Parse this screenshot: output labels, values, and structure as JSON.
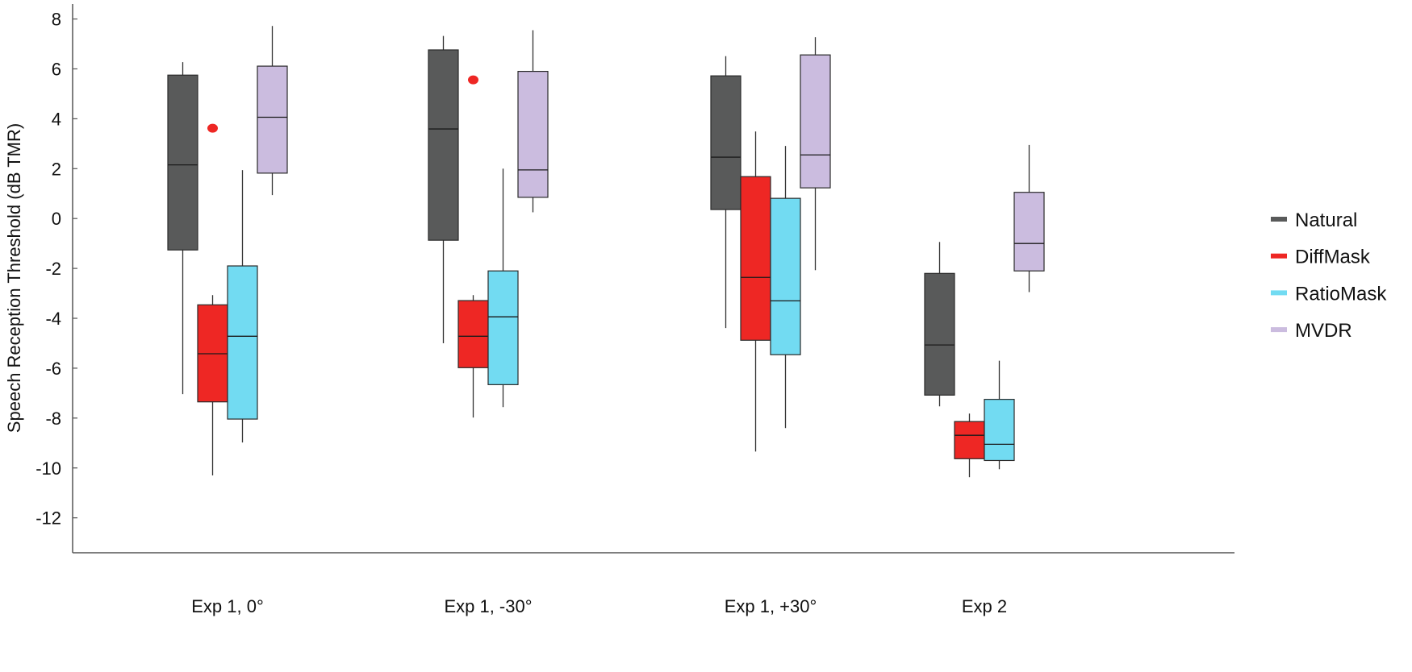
{
  "chart_data": {
    "type": "box",
    "title": "",
    "xlabel": "",
    "ylabel": "Speech Reception Threshold (dB TMR)",
    "ylim": [
      -13.4,
      8.6
    ],
    "yticks": [
      8,
      6,
      4,
      2,
      0,
      -2,
      -4,
      -6,
      -8,
      -10,
      -12
    ],
    "ytick_labels": [
      "8",
      "6",
      "4",
      "2",
      "0",
      "-2",
      "-4",
      "-6",
      "-8",
      "-10",
      "-12"
    ],
    "grid": false,
    "legend_position": "right",
    "categories": [
      "Exp 1, 0°",
      "Exp 1, -30°",
      "Exp 1, +30°",
      "Exp 2"
    ],
    "series": [
      {
        "name": "Natural",
        "color": "#595a5a",
        "boxes": [
          {
            "whisker_high": 6.27,
            "q3": 5.75,
            "median": 2.15,
            "q1": -1.26,
            "whisker_low": -7.04,
            "outliers": []
          },
          {
            "whisker_high": 7.32,
            "q3": 6.76,
            "median": 3.59,
            "q1": -0.87,
            "whisker_low": -5.0,
            "outliers": []
          },
          {
            "whisker_high": 6.51,
            "q3": 5.72,
            "median": 2.46,
            "q1": 0.36,
            "whisker_low": -4.39,
            "outliers": []
          },
          {
            "whisker_high": -0.94,
            "q3": -2.2,
            "median": -5.07,
            "q1": -7.08,
            "whisker_low": -7.53,
            "outliers": []
          }
        ]
      },
      {
        "name": "DiffMask",
        "color": "#ee2724",
        "boxes": [
          {
            "whisker_high": -3.07,
            "q3": -3.46,
            "median": -5.42,
            "q1": -7.35,
            "whisker_low": -10.3,
            "outliers": [
              3.62
            ]
          },
          {
            "whisker_high": -3.07,
            "q3": -3.29,
            "median": -4.72,
            "q1": -5.98,
            "whisker_low": -7.98,
            "outliers": [
              5.56
            ]
          },
          {
            "whisker_high": 3.49,
            "q3": 1.68,
            "median": -2.36,
            "q1": -4.88,
            "whisker_low": -9.34,
            "outliers": []
          },
          {
            "whisker_high": -7.82,
            "q3": -8.14,
            "median": -8.69,
            "q1": -9.63,
            "whisker_low": -10.37,
            "outliers": []
          }
        ]
      },
      {
        "name": "RatioMask",
        "color": "#72dbf2",
        "boxes": [
          {
            "whisker_high": 1.94,
            "q3": -1.9,
            "median": -4.72,
            "q1": -8.04,
            "whisker_low": -8.98,
            "outliers": []
          },
          {
            "whisker_high": 2.0,
            "q3": -2.1,
            "median": -3.94,
            "q1": -6.66,
            "whisker_low": -7.56,
            "outliers": []
          },
          {
            "whisker_high": 2.91,
            "q3": 0.81,
            "median": -3.3,
            "q1": -5.46,
            "whisker_low": -8.4,
            "outliers": []
          },
          {
            "whisker_high": -5.7,
            "q3": -7.25,
            "median": -9.05,
            "q1": -9.7,
            "whisker_low": -10.05,
            "outliers": []
          }
        ]
      },
      {
        "name": "MVDR",
        "color": "#cbbcdf",
        "boxes": [
          {
            "whisker_high": 7.72,
            "q3": 6.11,
            "median": 4.06,
            "q1": 1.82,
            "whisker_low": 0.94,
            "outliers": []
          },
          {
            "whisker_high": 7.55,
            "q3": 5.9,
            "median": 1.95,
            "q1": 0.85,
            "whisker_low": 0.25,
            "outliers": []
          },
          {
            "whisker_high": 7.27,
            "q3": 6.56,
            "median": 2.55,
            "q1": 1.23,
            "whisker_low": -2.07,
            "outliers": []
          },
          {
            "whisker_high": 2.95,
            "q3": 1.05,
            "median": -1.0,
            "q1": -2.1,
            "whisker_low": -2.95,
            "outliers": []
          }
        ]
      }
    ]
  }
}
